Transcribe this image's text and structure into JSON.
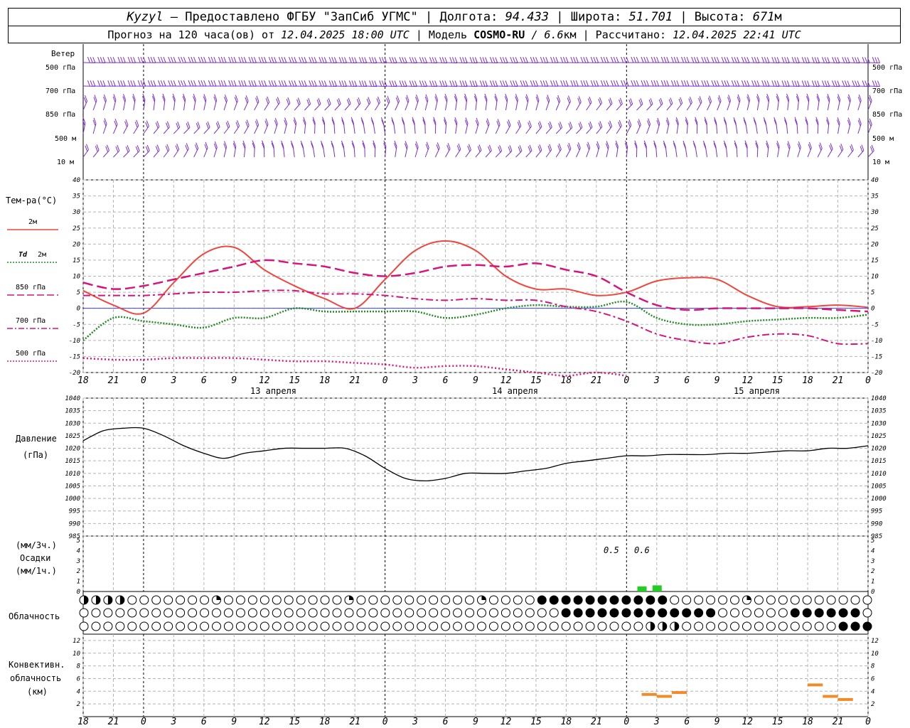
{
  "header": {
    "station": "Kyzyl",
    "provider": "– Предоставлено ФГБУ \"ЗапСиб УГМС\" |",
    "lon_label": "Долгота:",
    "lon": "94.433",
    "lat_label": "| Широта:",
    "lat": "51.701",
    "alt_label": "| Высота:",
    "alt": "671",
    "alt_unit": "м",
    "fc_label": "Прогноз на 120 часа(ов) от",
    "fc_time": "12.04.2025 18:00 UTC",
    "model_label": "| Модель",
    "model": "COSMO-RU",
    "model_res": "/ 6.6",
    "model_unit": "км",
    "calc_label": "| Рассчитано:",
    "calc_time": "12.04.2025 22:41 UTC"
  },
  "labels": {
    "wind": "Ветер",
    "wind_levels": [
      "500 гПа",
      "700 гПа",
      "850 гПа",
      "500 м",
      "10 м"
    ],
    "temp_title": "Тем-ра(°C)",
    "temp_2m": "2м",
    "td_prefix": "Td",
    "td_2m": "2м",
    "t850": "850 гПа",
    "t700": "700 гПа",
    "t500": "500 гПа",
    "pressure_title": "Давление",
    "pressure_unit": "(гПа)",
    "precip_unit3": "(мм/3ч.)",
    "precip_title": "Осадки",
    "precip_unit1": "(мм/1ч.)",
    "cloud_title": "Облачность",
    "conv_l1": "Конвективн.",
    "conv_l2": "облачность",
    "conv_l3": "(км)",
    "dates": [
      "13 апреля",
      "14 апреля",
      "15 апреля"
    ],
    "precip_values": [
      "0.5",
      "0.6"
    ]
  },
  "colors": {
    "t2m": "#f0463c",
    "td": "#228b22",
    "t850": "#d6157a",
    "t700": "#d6157a",
    "t500": "#e0157a",
    "wind": "#7b2fd0",
    "precip": "#22cc22",
    "conv": "#f08c28",
    "pressure": "#000000"
  },
  "chart_data": [
    {
      "type": "line",
      "title": "Тем-ра(°C)",
      "x_ticks": [
        "18",
        "21",
        "0",
        "3",
        "6",
        "9",
        "12",
        "15",
        "18",
        "21",
        "0",
        "3",
        "6",
        "9",
        "12",
        "15",
        "18",
        "21",
        "0",
        "3",
        "6",
        "9",
        "12",
        "15",
        "18",
        "21",
        "0"
      ],
      "xlim_hours": [
        0,
        78
      ],
      "ylim": [
        -20,
        40
      ],
      "yticks": [
        -20,
        -15,
        -10,
        -5,
        0,
        5,
        10,
        15,
        20,
        25,
        30,
        35,
        40
      ],
      "series": [
        {
          "name": "2м",
          "x": [
            0,
            3,
            6,
            9,
            12,
            15,
            18,
            21,
            24,
            27,
            30,
            33,
            36,
            39,
            42,
            45,
            48,
            51,
            54,
            57,
            60,
            63,
            66,
            69,
            72,
            75,
            78
          ],
          "y": [
            5.5,
            1,
            -1.5,
            8,
            17,
            19,
            12,
            7,
            3,
            0,
            9,
            18,
            21,
            18,
            10,
            6,
            6,
            4,
            5,
            8.5,
            9.5,
            9,
            4,
            0.5,
            0.5,
            1,
            0.3
          ]
        },
        {
          "name": "Td 2м",
          "x": [
            0,
            3,
            6,
            9,
            12,
            15,
            18,
            21,
            24,
            27,
            30,
            33,
            36,
            39,
            42,
            45,
            48,
            51,
            54,
            57,
            60,
            63,
            66,
            69,
            72,
            75,
            78
          ],
          "y": [
            -10,
            -3,
            -4,
            -5,
            -6,
            -3,
            -3,
            0,
            -1,
            -1,
            -1,
            -1,
            -3,
            -2,
            0,
            1,
            0.5,
            0.5,
            2,
            -3,
            -5,
            -5,
            -4,
            -3.5,
            -3,
            -3,
            -2
          ]
        },
        {
          "name": "850 гПа",
          "x": [
            0,
            3,
            6,
            9,
            12,
            15,
            18,
            21,
            24,
            27,
            30,
            33,
            36,
            39,
            42,
            45,
            48,
            51,
            54,
            57,
            60,
            63,
            66,
            69,
            72,
            75,
            78
          ],
          "y": [
            8,
            6,
            7,
            9,
            11,
            13,
            15,
            14,
            13,
            11,
            10,
            11,
            13,
            13.5,
            13,
            14,
            12,
            10,
            5,
            1,
            -0.5,
            0,
            0,
            0,
            0,
            -0.5,
            -1
          ]
        },
        {
          "name": "700 гПа",
          "x": [
            0,
            3,
            6,
            9,
            12,
            15,
            18,
            21,
            24,
            27,
            30,
            33,
            36,
            39,
            42,
            45,
            48,
            51,
            54,
            57,
            60,
            63,
            66,
            69,
            72,
            75,
            78
          ],
          "y": [
            4,
            4,
            4,
            4.5,
            5,
            5,
            5.5,
            5.5,
            4.5,
            4.5,
            4,
            3,
            2.5,
            3,
            2.5,
            2.5,
            0.5,
            -1,
            -4,
            -8,
            -10,
            -11,
            -9,
            -8,
            -8.5,
            -11,
            -11
          ]
        },
        {
          "name": "500 гПа",
          "x": [
            0,
            3,
            6,
            9,
            12,
            15,
            18,
            21,
            24,
            27,
            30,
            33,
            36,
            39,
            42,
            45,
            48,
            51,
            54
          ],
          "y": [
            -15.5,
            -16,
            -16,
            -15.5,
            -15.5,
            -15.5,
            -16,
            -16.5,
            -16.5,
            -17,
            -17.5,
            -18.5,
            -18,
            -18,
            -19,
            -20,
            -21,
            -20,
            -21
          ]
        }
      ]
    },
    {
      "type": "line",
      "title": "Давление",
      "ylabel": "(гПа)",
      "ylim": [
        985,
        1040
      ],
      "yticks": [
        985,
        990,
        995,
        1000,
        1005,
        1010,
        1015,
        1020,
        1025,
        1030,
        1035,
        1040
      ],
      "series": [
        {
          "name": "Давление",
          "x": [
            0,
            2,
            4,
            6,
            8,
            10,
            12,
            14,
            16,
            18,
            20,
            22,
            24,
            26,
            28,
            30,
            32,
            34,
            36,
            38,
            40,
            42,
            44,
            46,
            48,
            50,
            52,
            54,
            56,
            58,
            60,
            62,
            64,
            66,
            68,
            70,
            72,
            74,
            76,
            78
          ],
          "y": [
            1023,
            1027,
            1028,
            1028,
            1025,
            1021,
            1018,
            1016,
            1018,
            1019,
            1020,
            1020,
            1020,
            1020,
            1017,
            1012,
            1008,
            1007,
            1008,
            1010,
            1010,
            1010,
            1011,
            1012,
            1014,
            1015,
            1016,
            1017,
            1017,
            1017.5,
            1017.5,
            1017.5,
            1018,
            1018,
            1018.5,
            1019,
            1019,
            1020,
            1020,
            1021
          ]
        }
      ]
    },
    {
      "type": "bar",
      "title": "Осадки",
      "ylim": [
        0,
        5
      ],
      "yticks": [
        0,
        1,
        2,
        3,
        4,
        5
      ],
      "x_hours": [
        55.5,
        57
      ],
      "values": [
        0.5,
        0.6
      ]
    },
    {
      "type": "line",
      "title": "Конвективн. облачность (км)",
      "ylim": [
        0,
        13
      ],
      "yticks": [
        2,
        4,
        6,
        8,
        10,
        12
      ],
      "segments": [
        {
          "x0": 55.5,
          "x1": 57,
          "y": 3.5
        },
        {
          "x0": 57,
          "x1": 58.5,
          "y": 3.2
        },
        {
          "x0": 58.5,
          "x1": 60,
          "y": 3.8
        },
        {
          "x0": 72,
          "x1": 73.5,
          "y": 5
        },
        {
          "x0": 73.5,
          "x1": 75,
          "y": 3.2
        },
        {
          "x0": 75,
          "x1": 76.5,
          "y": 2.7
        }
      ]
    }
  ]
}
